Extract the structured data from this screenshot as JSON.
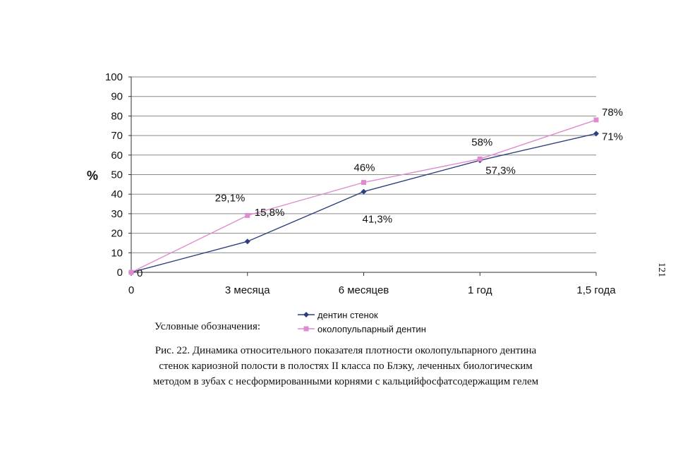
{
  "chart_data": {
    "type": "line",
    "categories": [
      "0",
      "3 месяца",
      "6 месяцев",
      "1 год",
      "1,5 года"
    ],
    "series": [
      {
        "name": "дентин стенок",
        "values": [
          0,
          15.8,
          41.3,
          57.3,
          71
        ],
        "labels": [
          "0",
          "15,8%",
          "41,3%",
          "57,3%",
          "71%"
        ],
        "color": "#2e3f7f",
        "marker": "diamond"
      },
      {
        "name": "околопульпарный дентин",
        "values": [
          0,
          29.1,
          46,
          58,
          78
        ],
        "labels": [
          "",
          "29,1%",
          "46%",
          "58%",
          "78%"
        ],
        "color": "#e08ad0",
        "marker": "square"
      }
    ],
    "xlabel": "",
    "ylabel": "%",
    "ylim": [
      0,
      100
    ],
    "yticks": [
      "0",
      "10",
      "20",
      "30",
      "40",
      "50",
      "60",
      "70",
      "80",
      "90",
      "100"
    ],
    "grid": true,
    "legend_position": "bottom"
  },
  "legend_title": "Условные обозначения:",
  "caption": [
    "Рис. 22.  Динамика относительного показателя плотности околопульпарного дентина",
    "стенок кариозной полости в полостях II класса по Блэку, леченных биологическим",
    "методом в зубах с несформированными корнями с кальцийфосфатсодержащим гелем"
  ],
  "page_number": "121"
}
